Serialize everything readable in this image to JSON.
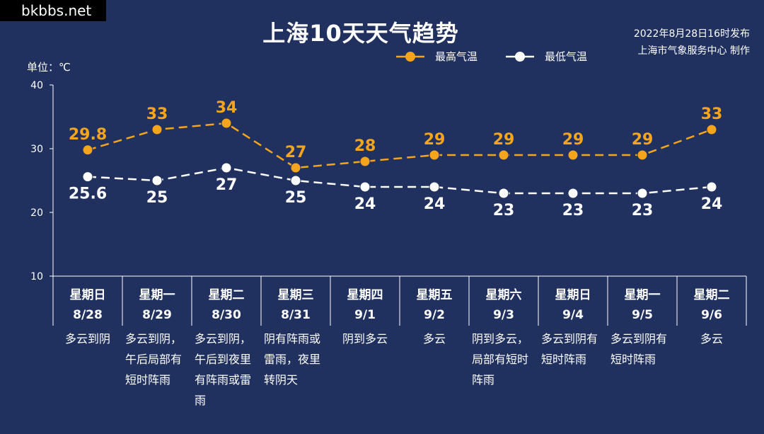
{
  "watermark": "bkbbs.net",
  "title": "上海10天天气趋势",
  "release": {
    "date": "2022年8月28日16时发布",
    "producer": "上海市气象服务中心 制作"
  },
  "chart_data": {
    "type": "line",
    "unit_label": "单位：℃",
    "ylim": [
      10,
      40
    ],
    "yticks": [
      "40",
      "30",
      "20",
      "10"
    ],
    "categories": [
      {
        "weekday": "星期日",
        "date": "8/28",
        "weather": [
          "多云到阴"
        ]
      },
      {
        "weekday": "星期一",
        "date": "8/29",
        "weather": [
          "多云到阴，",
          "午后局部有",
          "短时阵雨"
        ]
      },
      {
        "weekday": "星期二",
        "date": "8/30",
        "weather": [
          "多云到阴，",
          "午后到夜里",
          "有阵雨或雷",
          "雨"
        ]
      },
      {
        "weekday": "星期三",
        "date": "8/31",
        "weather": [
          "阴有阵雨或",
          "雷雨，夜里",
          "转阴天"
        ]
      },
      {
        "weekday": "星期四",
        "date": "9/1",
        "weather": [
          "阴到多云"
        ]
      },
      {
        "weekday": "星期五",
        "date": "9/2",
        "weather": [
          "多云"
        ]
      },
      {
        "weekday": "星期六",
        "date": "9/3",
        "weather": [
          "阴到多云，",
          "局部有短时",
          "阵雨"
        ]
      },
      {
        "weekday": "星期日",
        "date": "9/4",
        "weather": [
          "多云到阴有",
          "短时阵雨"
        ]
      },
      {
        "weekday": "星期一",
        "date": "9/5",
        "weather": [
          "多云到阴有",
          "短时阵雨"
        ]
      },
      {
        "weekday": "星期二",
        "date": "9/6",
        "weather": [
          "多云"
        ]
      }
    ],
    "series": [
      {
        "name": "最高气温",
        "color": "#f5a51c",
        "values": [
          29.8,
          33,
          34,
          27,
          28,
          29,
          29,
          29,
          29,
          33
        ],
        "labels": [
          "29.8",
          "33",
          "34",
          "27",
          "28",
          "29",
          "29",
          "29",
          "29",
          "33"
        ]
      },
      {
        "name": "最低气温",
        "color": "#ffffff",
        "values": [
          25.6,
          25,
          27,
          25,
          24,
          24,
          23,
          23,
          23,
          24
        ],
        "labels": [
          "25.6",
          "25",
          "27",
          "25",
          "24",
          "24",
          "23",
          "23",
          "23",
          "24"
        ]
      }
    ],
    "grid": false,
    "legend_position": "top-center"
  }
}
